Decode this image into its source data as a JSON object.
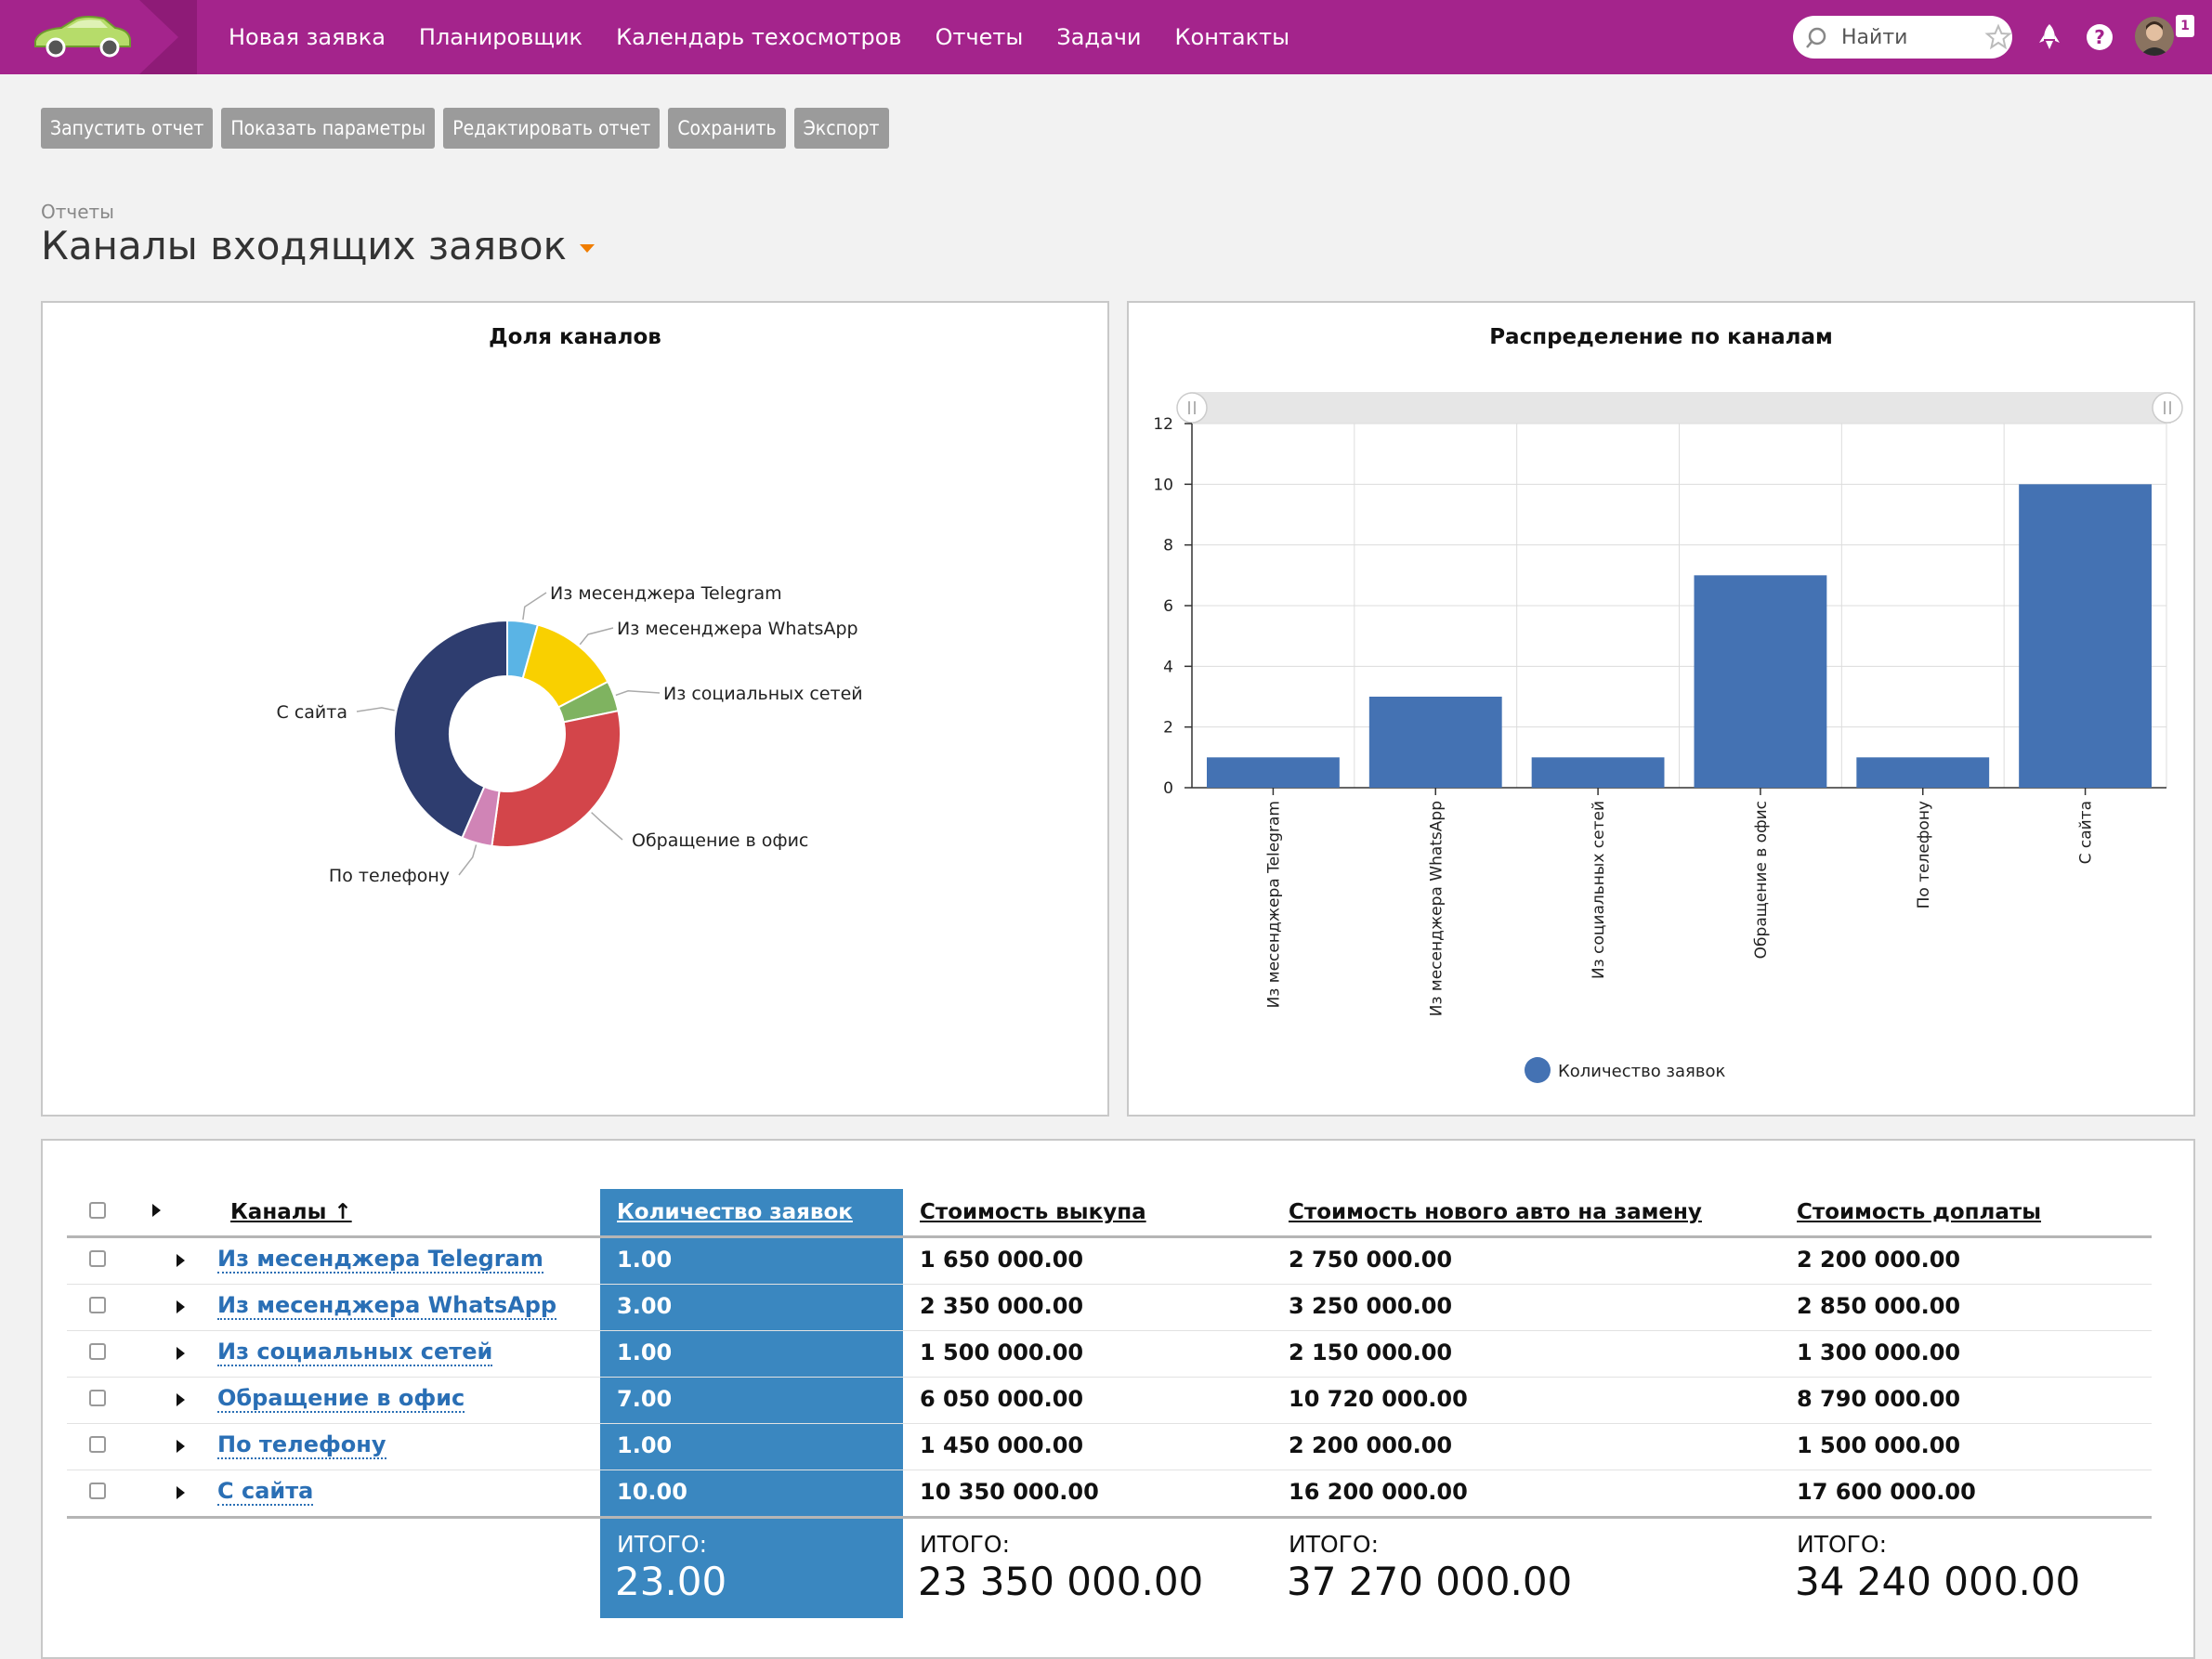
{
  "nav": {
    "items": [
      "Новая заявка",
      "Планировщик",
      "Календарь техосмотров",
      "Отчеты",
      "Задачи",
      "Контакты"
    ],
    "search_placeholder": "Найти",
    "notification_count": "1"
  },
  "toolbar": {
    "buttons": [
      "Запустить отчет",
      "Показать параметры",
      "Редактировать отчет",
      "Сохранить",
      "Экспорт"
    ]
  },
  "breadcrumb": "Отчеты",
  "page_title": "Каналы входящих заявок",
  "colors": {
    "topbar": "#a4248c",
    "accent_orange": "#f07d00",
    "bar": "#4472b3",
    "highlight_column": "#3a87c0",
    "link": "#2a6fb5"
  },
  "chart_data": [
    {
      "type": "pie",
      "variant": "donut",
      "title": "Доля каналов",
      "categories": [
        "Из месенджера Telegram",
        "Из месенджера WhatsApp",
        "Из социальных сетей",
        "Обращение в офис",
        "По телефону",
        "С сайта"
      ],
      "values": [
        1,
        3,
        1,
        7,
        1,
        10
      ],
      "colors": [
        "#5ab4e5",
        "#f9d000",
        "#7fb360",
        "#d3454a",
        "#d084b6",
        "#2e3d6f"
      ],
      "slice_labels": "outside with leader lines"
    },
    {
      "type": "bar",
      "title": "Распределение по каналам",
      "categories": [
        "Из месенджера Telegram",
        "Из месенджера WhatsApp",
        "Из социальных сетей",
        "Обращение в офис",
        "По телефону",
        "С сайта"
      ],
      "series": [
        {
          "name": "Количество заявок",
          "values": [
            1,
            3,
            1,
            7,
            1,
            10
          ]
        }
      ],
      "ylim": [
        0,
        12
      ],
      "yticks": [
        "0",
        "2",
        "4",
        "6",
        "8",
        "10",
        "12"
      ],
      "grid": true,
      "legend": "bottom",
      "color": "#4472b3"
    }
  ],
  "table": {
    "headers": {
      "channels": "Каналы ↑",
      "count": "Количество заявок",
      "buyout": "Стоимость выкупа",
      "new_car": "Стоимость нового авто на замену",
      "surcharge": "Стоимость доплаты"
    },
    "rows": [
      {
        "channel": "Из месенджера Telegram",
        "count": "1.00",
        "buyout": "1 650 000.00",
        "new_car": "2 750 000.00",
        "surcharge": "2 200 000.00"
      },
      {
        "channel": "Из месенджера WhatsApp",
        "count": "3.00",
        "buyout": "2 350 000.00",
        "new_car": "3 250 000.00",
        "surcharge": "2 850 000.00"
      },
      {
        "channel": "Из социальных сетей",
        "count": "1.00",
        "buyout": "1 500 000.00",
        "new_car": "2 150 000.00",
        "surcharge": "1 300 000.00"
      },
      {
        "channel": "Обращение в офис",
        "count": "7.00",
        "buyout": "6 050 000.00",
        "new_car": "10 720 000.00",
        "surcharge": "8 790 000.00"
      },
      {
        "channel": "По телефону",
        "count": "1.00",
        "buyout": "1 450 000.00",
        "new_car": "2 200 000.00",
        "surcharge": "1 500 000.00"
      },
      {
        "channel": "С сайта",
        "count": "10.00",
        "buyout": "10 350 000.00",
        "new_car": "16 200 000.00",
        "surcharge": "17 600 000.00"
      }
    ],
    "totals": {
      "label": "ИТОГО:",
      "count": "23.00",
      "buyout": "23 350 000.00",
      "new_car": "37 270 000.00",
      "surcharge": "34 240 000.00"
    }
  }
}
